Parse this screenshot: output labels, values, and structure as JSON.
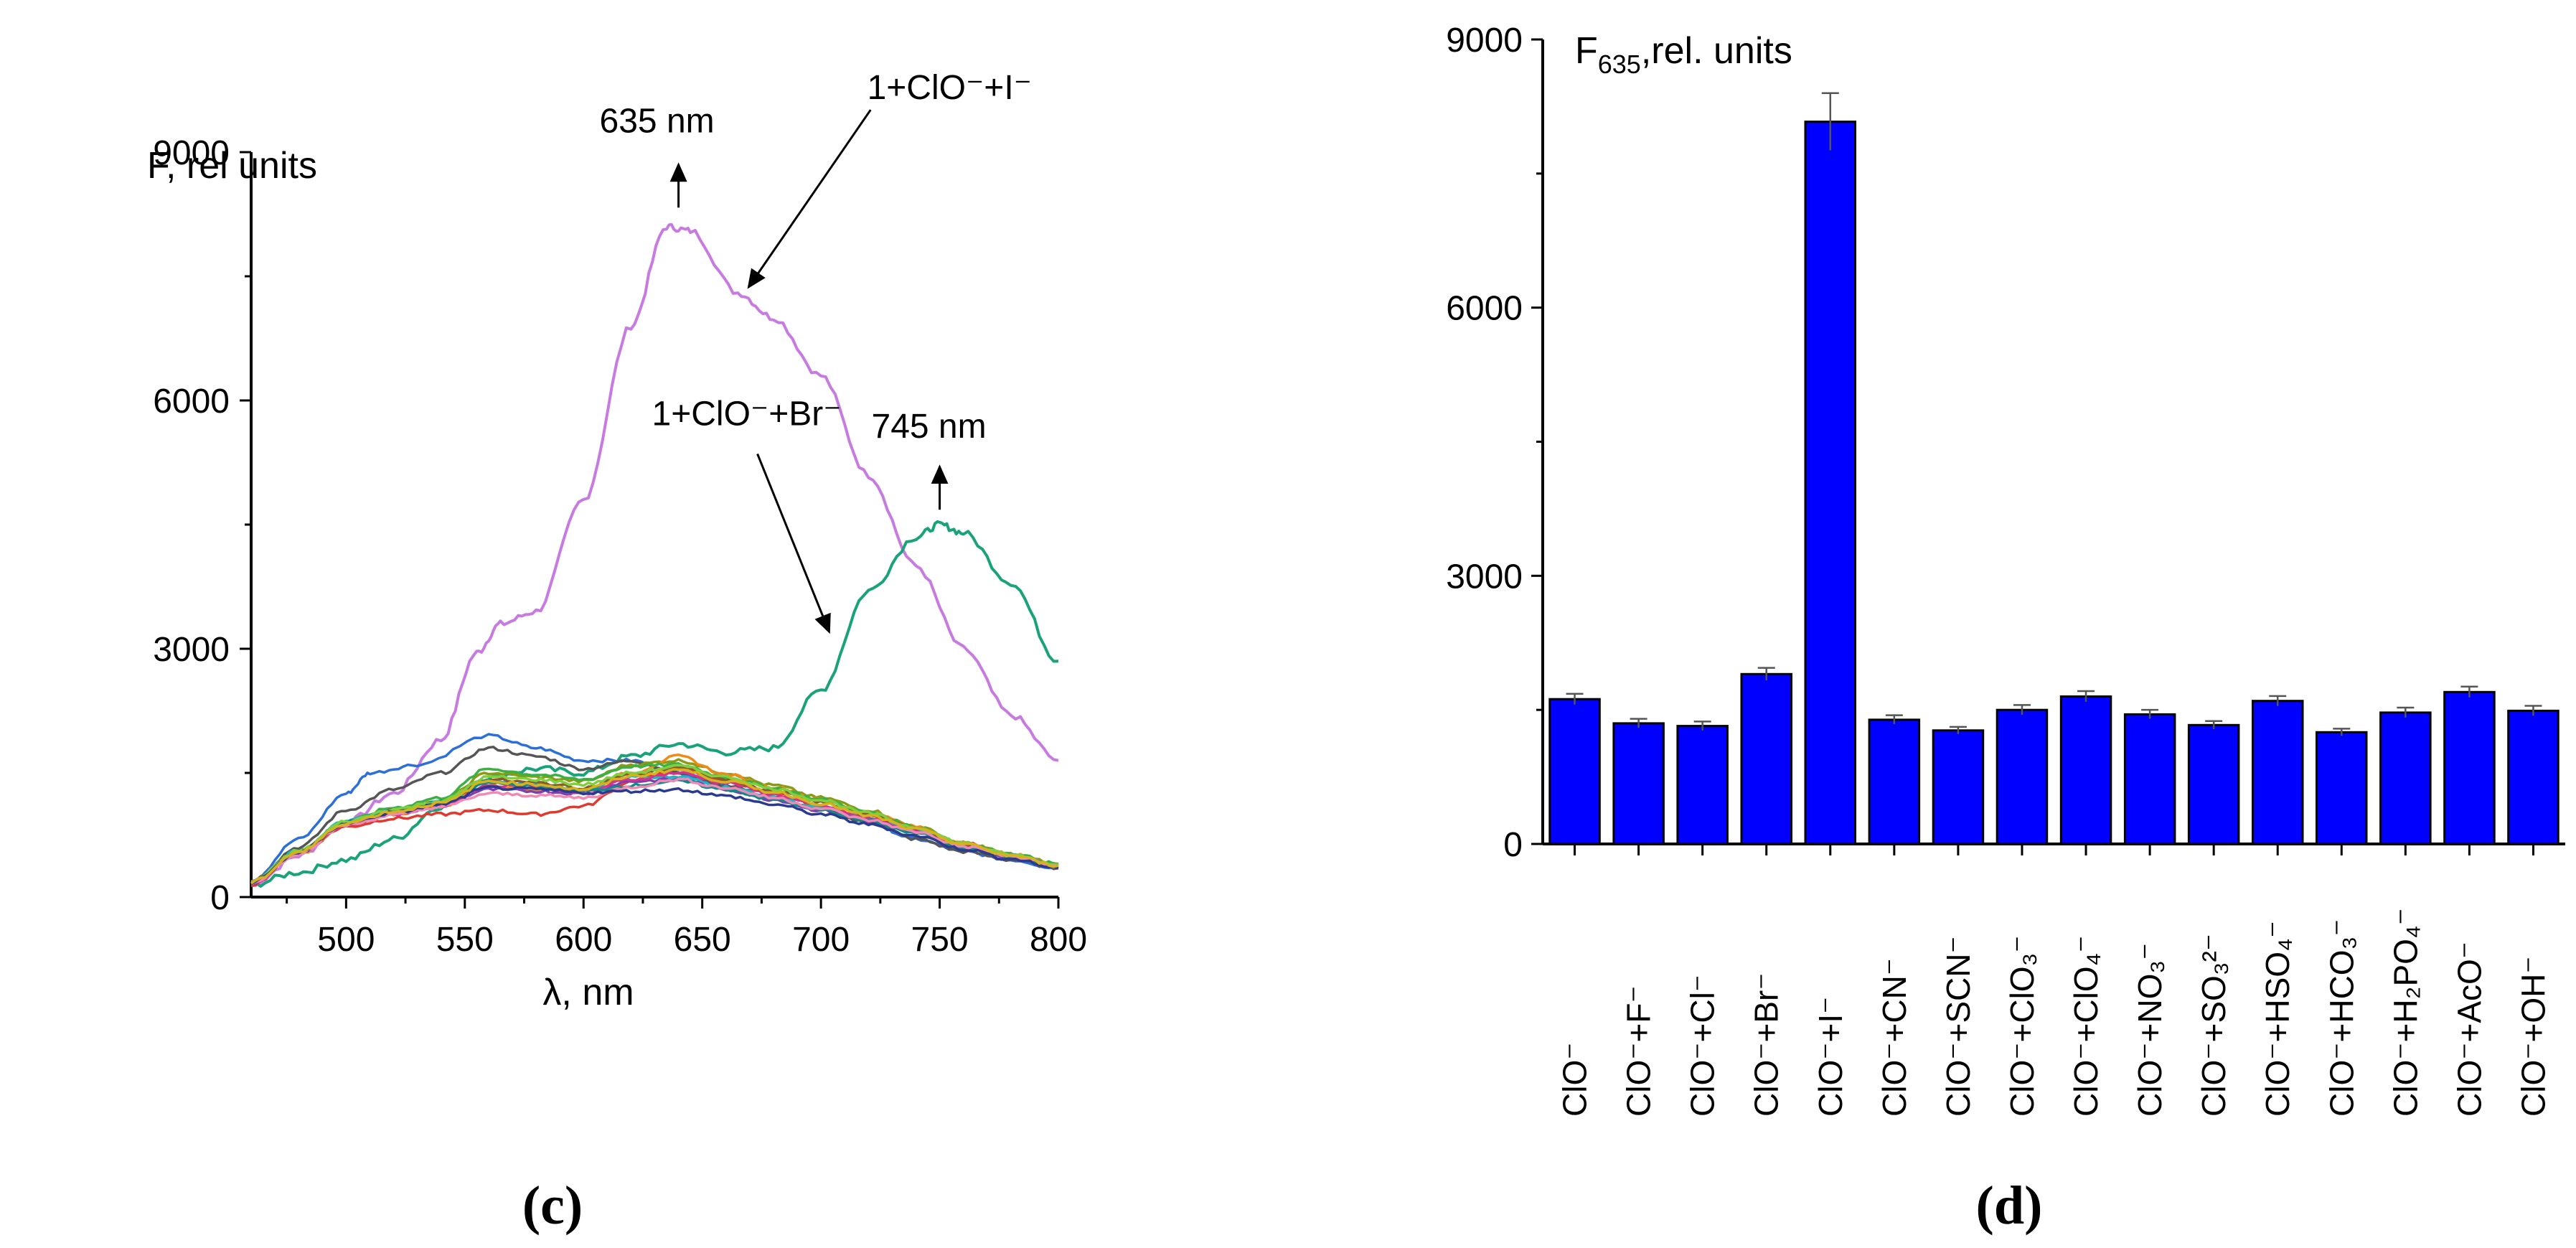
{
  "chart_data": [
    {
      "type": "line",
      "panel": "(c)",
      "ylabel": "F, rel units",
      "xlabel": "λ, nm",
      "xlim": [
        460,
        800
      ],
      "ylim": [
        0,
        9000
      ],
      "xticks": [
        "500",
        "550",
        "600",
        "650",
        "700",
        "750",
        "800"
      ],
      "yticks": [
        "0",
        "3000",
        "6000",
        "9000"
      ],
      "annotations": [
        {
          "text": "635 nm",
          "x": 640,
          "y": 8200
        },
        {
          "text": "745 nm",
          "x": 750,
          "y": 4550
        },
        {
          "text": "1+ClO⁻+I⁻",
          "target_series": "1+ClO⁻+I⁻",
          "x": 665,
          "y": 7300
        },
        {
          "text": "1+ClO⁻+Br⁻",
          "target_series": "1+ClO⁻+Br⁻",
          "x": 708,
          "y": 3100
        }
      ],
      "series": [
        {
          "name": "1+ClO⁻+I⁻",
          "color": "#c77be0",
          "x": [
            460,
            480,
            500,
            520,
            540,
            555,
            565,
            580,
            600,
            620,
            635,
            645,
            665,
            680,
            700,
            720,
            740,
            760,
            780,
            800
          ],
          "values": [
            150,
            500,
            900,
            1250,
            1900,
            2950,
            3300,
            3450,
            4800,
            6900,
            8100,
            8050,
            7300,
            7000,
            6300,
            5100,
            4000,
            3000,
            2200,
            1650
          ]
        },
        {
          "name": "1+ClO⁻+Br⁻",
          "color": "#1aa37a",
          "x": [
            460,
            480,
            500,
            520,
            540,
            560,
            580,
            600,
            620,
            640,
            660,
            680,
            700,
            720,
            740,
            750,
            760,
            780,
            800
          ],
          "values": [
            150,
            300,
            450,
            700,
            1100,
            1450,
            1550,
            1500,
            1700,
            1850,
            1750,
            1800,
            2500,
            3700,
            4350,
            4500,
            4400,
            3800,
            2850
          ]
        },
        {
          "name": "blue",
          "color": "#2d6fd8",
          "x": [
            460,
            480,
            500,
            510,
            530,
            560,
            580,
            600,
            620,
            640,
            660,
            680,
            700,
            720,
            740,
            760,
            780,
            800
          ],
          "values": [
            200,
            700,
            1250,
            1500,
            1600,
            1950,
            1800,
            1650,
            1650,
            1500,
            1350,
            1200,
            1050,
            900,
            700,
            550,
            450,
            350
          ]
        },
        {
          "name": "dark-gray",
          "color": "#555555",
          "x": [
            460,
            480,
            500,
            520,
            540,
            560,
            580,
            600,
            620,
            640,
            660,
            680,
            700,
            720,
            740,
            760,
            780,
            800
          ],
          "values": [
            200,
            600,
            1050,
            1300,
            1500,
            1800,
            1700,
            1550,
            1650,
            1500,
            1350,
            1200,
            1050,
            900,
            700,
            550,
            450,
            350
          ]
        },
        {
          "name": "red",
          "color": "#e03a2f",
          "x": [
            460,
            480,
            500,
            520,
            540,
            560,
            580,
            600,
            620,
            640,
            660,
            680,
            700,
            720,
            740,
            760,
            780,
            800
          ],
          "values": [
            150,
            550,
            850,
            950,
            1000,
            1050,
            1000,
            1100,
            1400,
            1550,
            1400,
            1250,
            1100,
            950,
            800,
            650,
            500,
            380
          ]
        },
        {
          "name": "olive",
          "color": "#8a9a12",
          "x": [
            460,
            480,
            500,
            520,
            540,
            560,
            580,
            600,
            620,
            640,
            660,
            680,
            700,
            720,
            740,
            760,
            780,
            800
          ],
          "values": [
            180,
            550,
            900,
            1050,
            1150,
            1500,
            1450,
            1400,
            1600,
            1650,
            1500,
            1350,
            1200,
            1050,
            850,
            650,
            520,
            400
          ]
        },
        {
          "name": "orange",
          "color": "#ef8a17",
          "x": [
            460,
            480,
            500,
            520,
            540,
            560,
            580,
            600,
            620,
            640,
            660,
            680,
            700,
            720,
            740,
            760,
            780,
            800
          ],
          "values": [
            170,
            520,
            880,
            1000,
            1100,
            1350,
            1300,
            1300,
            1500,
            1700,
            1480,
            1330,
            1180,
            1020,
            850,
            650,
            520,
            400
          ]
        },
        {
          "name": "green",
          "color": "#3cb043",
          "x": [
            460,
            480,
            500,
            520,
            540,
            560,
            580,
            600,
            620,
            640,
            660,
            680,
            700,
            720,
            740,
            760,
            780,
            800
          ],
          "values": [
            180,
            560,
            920,
            1080,
            1200,
            1550,
            1480,
            1420,
            1580,
            1600,
            1450,
            1320,
            1180,
            1020,
            850,
            650,
            520,
            400
          ]
        },
        {
          "name": "cyan",
          "color": "#1fb5c7",
          "x": [
            460,
            480,
            500,
            520,
            540,
            560,
            580,
            600,
            620,
            640,
            660,
            680,
            700,
            720,
            740,
            760,
            780,
            800
          ],
          "values": [
            180,
            560,
            920,
            1050,
            1150,
            1400,
            1360,
            1300,
            1450,
            1450,
            1330,
            1200,
            1080,
            950,
            800,
            620,
            500,
            380
          ]
        },
        {
          "name": "purple",
          "color": "#7b3fb3",
          "x": [
            460,
            480,
            500,
            520,
            540,
            560,
            580,
            600,
            620,
            640,
            660,
            680,
            700,
            720,
            740,
            760,
            780,
            800
          ],
          "values": [
            170,
            540,
            890,
            1020,
            1120,
            1300,
            1280,
            1250,
            1400,
            1420,
            1300,
            1180,
            1050,
            920,
            780,
            600,
            480,
            370
          ]
        },
        {
          "name": "magenta",
          "color": "#d6338f",
          "x": [
            460,
            480,
            500,
            520,
            540,
            560,
            580,
            600,
            620,
            640,
            660,
            680,
            700,
            720,
            740,
            760,
            780,
            800
          ],
          "values": [
            170,
            530,
            880,
            1000,
            1100,
            1350,
            1330,
            1270,
            1420,
            1500,
            1380,
            1240,
            1100,
            950,
            800,
            620,
            490,
            370
          ]
        },
        {
          "name": "brown",
          "color": "#8b5a2b",
          "x": [
            460,
            480,
            500,
            520,
            540,
            560,
            580,
            600,
            620,
            640,
            660,
            680,
            700,
            720,
            740,
            760,
            780,
            800
          ],
          "values": [
            175,
            545,
            900,
            1040,
            1140,
            1420,
            1380,
            1320,
            1480,
            1560,
            1420,
            1280,
            1140,
            990,
            830,
            640,
            500,
            380
          ]
        },
        {
          "name": "teal",
          "color": "#0f8a8a",
          "x": [
            460,
            480,
            500,
            520,
            540,
            560,
            580,
            600,
            620,
            640,
            660,
            680,
            700,
            720,
            740,
            760,
            780,
            800
          ],
          "values": [
            175,
            550,
            905,
            1045,
            1145,
            1380,
            1340,
            1280,
            1350,
            1400,
            1300,
            1180,
            1050,
            920,
            770,
            600,
            480,
            370
          ]
        },
        {
          "name": "light-green",
          "color": "#7fcf3f",
          "x": [
            460,
            480,
            500,
            520,
            540,
            560,
            580,
            600,
            620,
            640,
            660,
            680,
            700,
            720,
            740,
            760,
            780,
            800
          ],
          "values": [
            180,
            560,
            915,
            1060,
            1160,
            1450,
            1420,
            1360,
            1500,
            1580,
            1450,
            1310,
            1170,
            1010,
            840,
            650,
            510,
            390
          ]
        },
        {
          "name": "pink",
          "color": "#f08ab4",
          "x": [
            460,
            480,
            500,
            520,
            540,
            560,
            580,
            600,
            620,
            640,
            660,
            680,
            700,
            720,
            740,
            760,
            780,
            800
          ],
          "values": [
            170,
            530,
            870,
            990,
            1090,
            1250,
            1230,
            1200,
            1330,
            1420,
            1320,
            1200,
            1070,
            930,
            790,
            610,
            490,
            370
          ]
        },
        {
          "name": "navy",
          "color": "#2a3b8f",
          "x": [
            460,
            480,
            500,
            520,
            540,
            560,
            580,
            600,
            620,
            640,
            660,
            680,
            700,
            720,
            740,
            760,
            780,
            800
          ],
          "values": [
            175,
            540,
            890,
            1020,
            1120,
            1320,
            1300,
            1260,
            1280,
            1300,
            1220,
            1120,
            1000,
            880,
            740,
            580,
            460,
            350
          ]
        },
        {
          "name": "gold",
          "color": "#d6b31c",
          "x": [
            460,
            480,
            500,
            520,
            540,
            560,
            580,
            600,
            620,
            640,
            660,
            680,
            700,
            720,
            740,
            760,
            780,
            800
          ],
          "values": [
            175,
            545,
            895,
            1035,
            1135,
            1400,
            1360,
            1300,
            1460,
            1540,
            1400,
            1270,
            1130,
            980,
            820,
            640,
            500,
            380
          ]
        }
      ]
    },
    {
      "type": "bar",
      "panel": "(d)",
      "ylabel": "F635,rel. units",
      "ylabel_main": "F",
      "ylabel_sub": "635",
      "ylabel_rest": ",rel. units",
      "ylim": [
        0,
        9000
      ],
      "yticks": [
        "0",
        "3000",
        "6000",
        "9000"
      ],
      "bar_color": "#0000ff",
      "categories": [
        "ClO⁻",
        "ClO⁻+F⁻",
        "ClO⁻+Cl⁻",
        "ClO⁻+Br⁻",
        "ClO⁻+I⁻",
        "ClO⁻+CN⁻",
        "ClO⁻+SCN⁻",
        "ClO⁻+ClO₃⁻",
        "ClO⁻+ClO₄⁻",
        "ClO⁻+NO₃⁻",
        "ClO⁻+SO₃²⁻",
        "ClO⁻+HSO₄⁻",
        "ClO⁻+HCO₃⁻",
        "ClO⁻+H₂PO₄⁻",
        "ClO⁻+AcO⁻",
        "ClO⁻+OH⁻"
      ],
      "values": [
        1620,
        1350,
        1320,
        1900,
        8080,
        1390,
        1270,
        1500,
        1650,
        1450,
        1330,
        1600,
        1250,
        1470,
        1700,
        1490
      ],
      "errors": [
        60,
        50,
        50,
        70,
        320,
        50,
        40,
        55,
        60,
        50,
        45,
        55,
        40,
        55,
        60,
        55
      ]
    }
  ],
  "labels": {
    "panel_c": "(c)",
    "panel_d": "(d)"
  }
}
